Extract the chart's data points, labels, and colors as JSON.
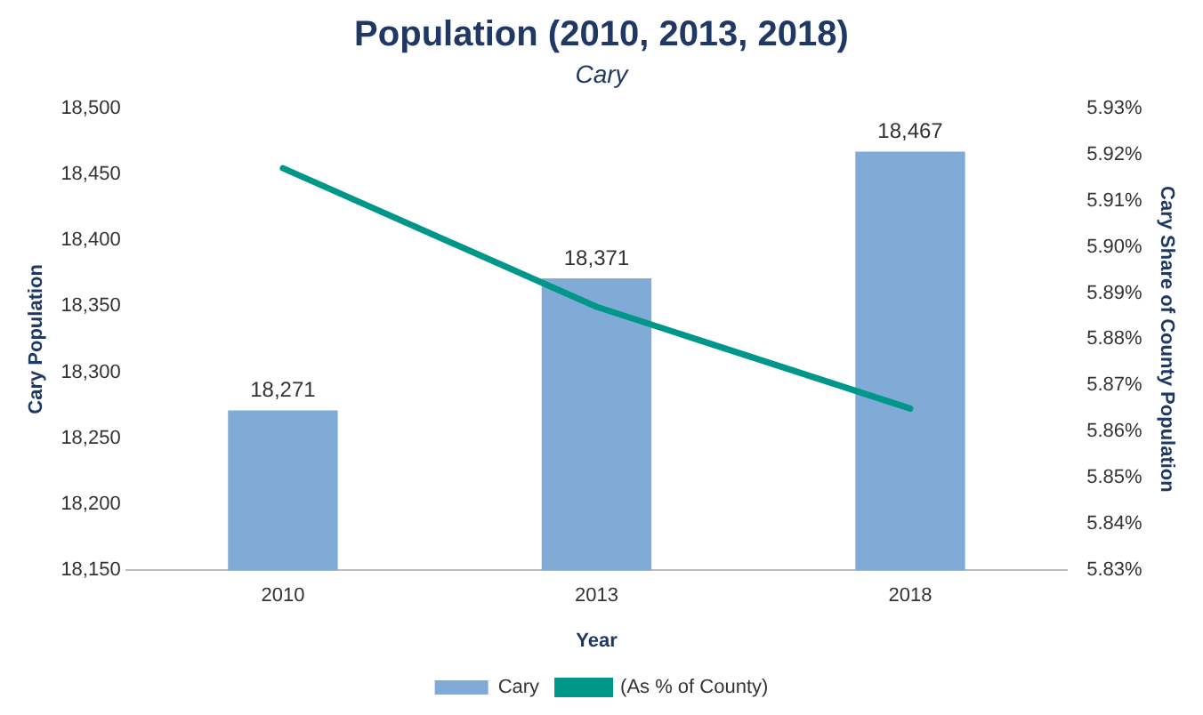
{
  "chart_data": {
    "type": "bar",
    "title": "Population (2010, 2013, 2018)",
    "subtitle": "Cary",
    "xlabel": "Year",
    "ylabel": "Cary Population",
    "y2label": "Cary Share of County Population",
    "categories": [
      "2010",
      "2013",
      "2018"
    ],
    "series": [
      {
        "name": "Cary",
        "color": "#7fabd6",
        "values": [
          18271,
          18371,
          18467
        ],
        "value_labels": [
          "18,271",
          "18,371",
          "18,467"
        ]
      },
      {
        "name": "(As % of County)",
        "type": "line",
        "axis": "y2",
        "color": "#00968a",
        "values": [
          5.917,
          5.887,
          5.865
        ]
      }
    ],
    "ylim": [
      18150,
      18500
    ],
    "yticks": [
      {
        "value": 18150,
        "label": "18,150"
      },
      {
        "value": 18200,
        "label": "18,200"
      },
      {
        "value": 18250,
        "label": "18,250"
      },
      {
        "value": 18300,
        "label": "18,300"
      },
      {
        "value": 18350,
        "label": "18,350"
      },
      {
        "value": 18400,
        "label": "18,400"
      },
      {
        "value": 18450,
        "label": "18,450"
      },
      {
        "value": 18500,
        "label": "18,500"
      }
    ],
    "y2lim": [
      5.83,
      5.93
    ],
    "y2ticks": [
      {
        "value": 5.83,
        "label": "5.83%"
      },
      {
        "value": 5.84,
        "label": "5.84%"
      },
      {
        "value": 5.85,
        "label": "5.85%"
      },
      {
        "value": 5.86,
        "label": "5.86%"
      },
      {
        "value": 5.87,
        "label": "5.87%"
      },
      {
        "value": 5.88,
        "label": "5.88%"
      },
      {
        "value": 5.89,
        "label": "5.89%"
      },
      {
        "value": 5.9,
        "label": "5.90%"
      },
      {
        "value": 5.91,
        "label": "5.91%"
      },
      {
        "value": 5.92,
        "label": "5.92%"
      },
      {
        "value": 5.93,
        "label": "5.93%"
      }
    ],
    "grid": false,
    "legend": "bottom",
    "marker": "none"
  }
}
